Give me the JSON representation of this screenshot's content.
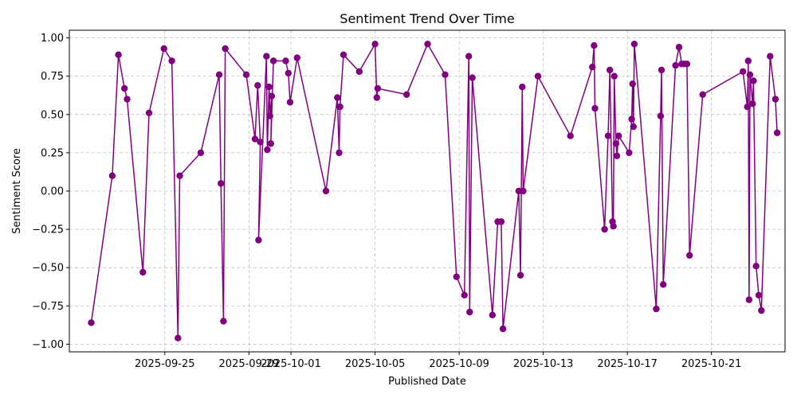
{
  "chart_data": {
    "type": "line",
    "title": "Sentiment Trend Over Time",
    "xlabel": "Published Date",
    "ylabel": "Sentiment Score",
    "grid": true,
    "ylim": [
      -1.05,
      1.05
    ],
    "xlim": [
      "2025-09-20T11:00",
      "2025-10-23T00:00"
    ],
    "x_ticks": [
      "2025-09-25",
      "2025-09-29",
      "2025-10-01",
      "2025-10-05",
      "2025-10-09",
      "2025-10-13",
      "2025-10-17",
      "2025-10-21"
    ],
    "y_ticks": [
      -1.0,
      -0.75,
      -0.5,
      -0.25,
      0.0,
      0.25,
      0.5,
      0.75,
      1.0
    ],
    "y_tick_labels": [
      "−1.00",
      "−0.75",
      "−0.50",
      "−0.25",
      "0.00",
      "0.25",
      "0.50",
      "0.75",
      "1.00"
    ],
    "series": [
      {
        "color": "#800080",
        "marker": "circle",
        "points": [
          {
            "x": "2025-09-21T12:00",
            "y": -0.86
          },
          {
            "x": "2025-09-22T12:00",
            "y": 0.1
          },
          {
            "x": "2025-09-22T19:00",
            "y": 0.89
          },
          {
            "x": "2025-09-23T02:00",
            "y": 0.67
          },
          {
            "x": "2025-09-23T05:00",
            "y": 0.6
          },
          {
            "x": "2025-09-23T23:00",
            "y": -0.53
          },
          {
            "x": "2025-09-24T06:00",
            "y": 0.51
          },
          {
            "x": "2025-09-24T23:00",
            "y": 0.93
          },
          {
            "x": "2025-09-25T08:00",
            "y": 0.85
          },
          {
            "x": "2025-09-25T15:00",
            "y": -0.96
          },
          {
            "x": "2025-09-25T17:00",
            "y": 0.1
          },
          {
            "x": "2025-09-26T17:00",
            "y": 0.25
          },
          {
            "x": "2025-09-27T14:00",
            "y": 0.76
          },
          {
            "x": "2025-09-27T16:00",
            "y": 0.05
          },
          {
            "x": "2025-09-27T19:00",
            "y": -0.85
          },
          {
            "x": "2025-09-27T21:00",
            "y": 0.93
          },
          {
            "x": "2025-09-28T21:00",
            "y": 0.76
          },
          {
            "x": "2025-09-29T07:00",
            "y": 0.34
          },
          {
            "x": "2025-09-29T10:00",
            "y": 0.69
          },
          {
            "x": "2025-09-29T13:00",
            "y": 0.32
          },
          {
            "x": "2025-09-29T11:00",
            "y": -0.32
          },
          {
            "x": "2025-09-29T20:00",
            "y": 0.88
          },
          {
            "x": "2025-09-29T21:00",
            "y": 0.27
          },
          {
            "x": "2025-09-29T23:00",
            "y": 0.68
          },
          {
            "x": "2025-09-30T00:00",
            "y": 0.49
          },
          {
            "x": "2025-09-30T02:00",
            "y": 0.62
          },
          {
            "x": "2025-09-30T01:00",
            "y": 0.31
          },
          {
            "x": "2025-09-30T04:00",
            "y": 0.85
          },
          {
            "x": "2025-09-30T18:00",
            "y": 0.85
          },
          {
            "x": "2025-09-30T21:00",
            "y": 0.77
          },
          {
            "x": "2025-09-30T23:00",
            "y": 0.58
          },
          {
            "x": "2025-10-01T07:00",
            "y": 0.87
          },
          {
            "x": "2025-10-02T16:00",
            "y": 0.0
          },
          {
            "x": "2025-10-03T05:00",
            "y": 0.61
          },
          {
            "x": "2025-10-03T07:00",
            "y": 0.25
          },
          {
            "x": "2025-10-03T08:00",
            "y": 0.55
          },
          {
            "x": "2025-10-03T12:00",
            "y": 0.89
          },
          {
            "x": "2025-10-04T06:00",
            "y": 0.78
          },
          {
            "x": "2025-10-05T00:00",
            "y": 0.96
          },
          {
            "x": "2025-10-05T02:00",
            "y": 0.61
          },
          {
            "x": "2025-10-05T03:00",
            "y": 0.67
          },
          {
            "x": "2025-10-06T12:00",
            "y": 0.63
          },
          {
            "x": "2025-10-07T12:00",
            "y": 0.96
          },
          {
            "x": "2025-10-08T08:00",
            "y": 0.76
          },
          {
            "x": "2025-10-08T21:00",
            "y": -0.56
          },
          {
            "x": "2025-10-09T06:00",
            "y": -0.68
          },
          {
            "x": "2025-10-09T11:00",
            "y": 0.88
          },
          {
            "x": "2025-10-09T12:00",
            "y": -0.79
          },
          {
            "x": "2025-10-09T15:00",
            "y": 0.74
          },
          {
            "x": "2025-10-10T14:00",
            "y": -0.81
          },
          {
            "x": "2025-10-10T20:00",
            "y": -0.2
          },
          {
            "x": "2025-10-11T00:00",
            "y": -0.2
          },
          {
            "x": "2025-10-11T02:00",
            "y": -0.9
          },
          {
            "x": "2025-10-11T20:00",
            "y": 0.0
          },
          {
            "x": "2025-10-11T22:00",
            "y": -0.55
          },
          {
            "x": "2025-10-12T00:00",
            "y": 0.68
          },
          {
            "x": "2025-10-12T01:00",
            "y": 0.0
          },
          {
            "x": "2025-10-12T18:00",
            "y": 0.75
          },
          {
            "x": "2025-10-14T07:00",
            "y": 0.36
          },
          {
            "x": "2025-10-15T08:00",
            "y": 0.81
          },
          {
            "x": "2025-10-15T10:00",
            "y": 0.95
          },
          {
            "x": "2025-10-15T11:00",
            "y": 0.54
          },
          {
            "x": "2025-10-15T22:00",
            "y": -0.25
          },
          {
            "x": "2025-10-16T02:00",
            "y": 0.36
          },
          {
            "x": "2025-10-16T04:00",
            "y": 0.79
          },
          {
            "x": "2025-10-16T07:00",
            "y": -0.2
          },
          {
            "x": "2025-10-16T08:00",
            "y": -0.23
          },
          {
            "x": "2025-10-16T09:00",
            "y": 0.75
          },
          {
            "x": "2025-10-16T11:00",
            "y": 0.31
          },
          {
            "x": "2025-10-16T12:00",
            "y": 0.23
          },
          {
            "x": "2025-10-16T14:00",
            "y": 0.36
          },
          {
            "x": "2025-10-17T02:00",
            "y": 0.25
          },
          {
            "x": "2025-10-17T05:00",
            "y": 0.47
          },
          {
            "x": "2025-10-17T06:00",
            "y": 0.7
          },
          {
            "x": "2025-10-17T07:00",
            "y": 0.42
          },
          {
            "x": "2025-10-17T08:00",
            "y": 0.96
          },
          {
            "x": "2025-10-18T09:00",
            "y": -0.77
          },
          {
            "x": "2025-10-18T14:00",
            "y": 0.49
          },
          {
            "x": "2025-10-18T15:00",
            "y": 0.79
          },
          {
            "x": "2025-10-18T17:00",
            "y": -0.61
          },
          {
            "x": "2025-10-19T07:00",
            "y": 0.82
          },
          {
            "x": "2025-10-19T11:00",
            "y": 0.94
          },
          {
            "x": "2025-10-19T14:00",
            "y": 0.83
          },
          {
            "x": "2025-10-19T17:00",
            "y": 0.83
          },
          {
            "x": "2025-10-19T20:00",
            "y": 0.83
          },
          {
            "x": "2025-10-19T23:00",
            "y": -0.42
          },
          {
            "x": "2025-10-20T14:00",
            "y": 0.63
          },
          {
            "x": "2025-10-22T12:00",
            "y": 0.78
          },
          {
            "x": "2025-10-22T17:00",
            "y": 0.55
          },
          {
            "x": "2025-10-22T18:00",
            "y": 0.85
          },
          {
            "x": "2025-10-22T19:00",
            "y": -0.71
          },
          {
            "x": "2025-10-22T20:00",
            "y": 0.76
          },
          {
            "x": "2025-10-22T23:00",
            "y": 0.57
          },
          {
            "x": "2025-10-23T00:00",
            "y": 0.72
          },
          {
            "x": "2025-10-23T03:00",
            "y": -0.49
          },
          {
            "x": "2025-10-23T06:00",
            "y": -0.68
          },
          {
            "x": "2025-10-23T09:00",
            "y": -0.78
          },
          {
            "x": "2025-10-23T19:00",
            "y": 0.88
          },
          {
            "x": "2025-10-24T01:00",
            "y": 0.6
          },
          {
            "x": "2025-10-24T03:00",
            "y": 0.38
          }
        ]
      }
    ]
  }
}
